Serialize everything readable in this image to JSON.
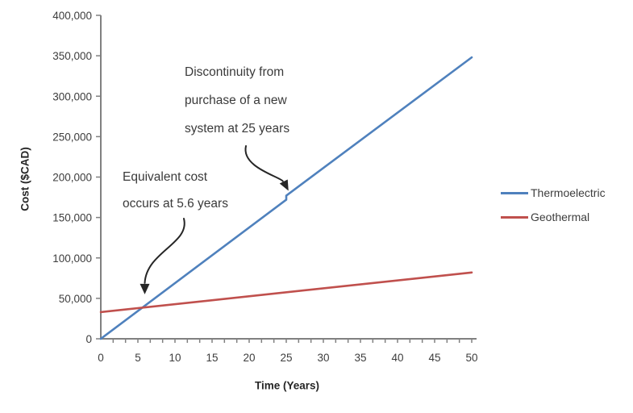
{
  "chart_data": {
    "type": "line",
    "title": "",
    "xlabel": "Time (Years)",
    "ylabel": "Cost ($CAD)",
    "xlim": [
      0,
      50
    ],
    "ylim": [
      0,
      400000
    ],
    "grid": false,
    "legend_position": "right",
    "x_ticks": [
      0,
      5,
      10,
      15,
      20,
      25,
      30,
      35,
      40,
      45,
      50
    ],
    "y_ticks": [
      {
        "value": 0,
        "label": "0"
      },
      {
        "value": 50000,
        "label": "50,000"
      },
      {
        "value": 100000,
        "label": "100,000"
      },
      {
        "value": 150000,
        "label": "150,000"
      },
      {
        "value": 200000,
        "label": "200,000"
      },
      {
        "value": 250000,
        "label": "250,000"
      },
      {
        "value": 300000,
        "label": "300,000"
      },
      {
        "value": 350000,
        "label": "350,000"
      },
      {
        "value": 400000,
        "label": "400,000"
      }
    ],
    "series": [
      {
        "name": "Thermoelectric",
        "color": "#4F81BD",
        "points": [
          [
            0,
            0
          ],
          [
            25,
            172000
          ],
          [
            25,
            177000
          ],
          [
            50,
            348000
          ]
        ]
      },
      {
        "name": "Geothermal",
        "color": "#C0504D",
        "points": [
          [
            0,
            33000
          ],
          [
            50,
            82000
          ]
        ]
      }
    ],
    "annotations": [
      {
        "id": "discontinuity",
        "lines": [
          "Discontinuity from",
          "purchase of a new",
          "system at 25 years"
        ],
        "arrow_target": {
          "x": 25.3,
          "y": 183000
        }
      },
      {
        "id": "equivalent-cost",
        "lines": [
          "Equivalent cost",
          "occurs at 5.6 years"
        ],
        "arrow_target": {
          "x": 5.6,
          "y": 53000
        }
      }
    ]
  },
  "colors": {
    "axis": "#808080",
    "tick_text": "#3d3d3d",
    "arrow": "#262626",
    "background": "#ffffff"
  }
}
